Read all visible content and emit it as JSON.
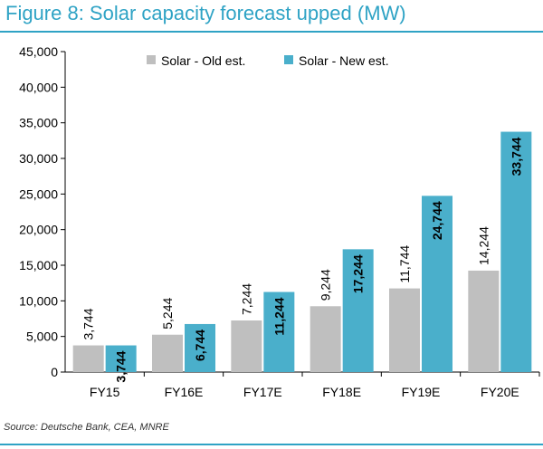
{
  "title": "Figure 8: Solar capacity forecast upped (MW)",
  "source": "Source: Deutsche Bank, CEA, MNRE",
  "colors": {
    "accent": "#2fa3c5",
    "old": "#bfbfbf",
    "new": "#4aafcb",
    "axis": "#000000"
  },
  "chart_data": {
    "type": "bar",
    "title": "",
    "xlabel": "",
    "ylabel": "",
    "categories": [
      "FY15",
      "FY16E",
      "FY17E",
      "FY18E",
      "FY19E",
      "FY20E"
    ],
    "series": [
      {
        "name": "Solar - Old est.",
        "values": [
          3744,
          5244,
          7244,
          9244,
          11744,
          14244
        ],
        "color": "#bfbfbf",
        "labels": [
          "3,744",
          "5,244",
          "7,244",
          "9,244",
          "11,744",
          "14,244"
        ]
      },
      {
        "name": "Solar - New est.",
        "values": [
          3744,
          6744,
          11244,
          17244,
          24744,
          33744
        ],
        "color": "#4aafcb",
        "labels": [
          "3,744",
          "6,744",
          "11,244",
          "17,244",
          "24,744",
          "33,744"
        ]
      }
    ],
    "ylim": [
      0,
      45000
    ],
    "yticks": [
      0,
      5000,
      10000,
      15000,
      20000,
      25000,
      30000,
      35000,
      40000,
      45000
    ],
    "ytick_labels": [
      "0",
      "5,000",
      "10,000",
      "15,000",
      "20,000",
      "25,000",
      "30,000",
      "35,000",
      "40,000",
      "45,000"
    ],
    "grid": false,
    "legend": "top-center"
  }
}
